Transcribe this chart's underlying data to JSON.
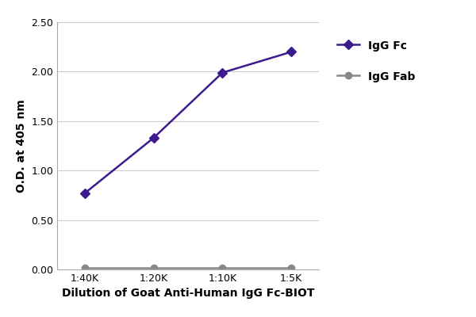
{
  "x_labels": [
    "1:40K",
    "1:20K",
    "1:10K",
    "1:5K"
  ],
  "x_positions": [
    0,
    1,
    2,
    3
  ],
  "igg_fc_values": [
    0.77,
    1.33,
    1.99,
    2.2
  ],
  "igg_fab_values": [
    0.02,
    0.02,
    0.02,
    0.02
  ],
  "igg_fc_color": "#3d1a8e",
  "igg_fab_color": "#888888",
  "igg_fc_label": "IgG Fc",
  "igg_fab_label": "IgG Fab",
  "xlabel": "Dilution of Goat Anti-Human IgG Fc-BIOT",
  "ylabel": "O.D. at 405 nm",
  "ylim": [
    0.0,
    2.5
  ],
  "yticks": [
    0.0,
    0.5,
    1.0,
    1.5,
    2.0,
    2.5
  ],
  "line_width": 1.8,
  "marker_size": 6,
  "marker_style_fc": "D",
  "marker_style_fab": "o",
  "background_color": "#ffffff",
  "grid_color": "#cccccc",
  "xlabel_fontsize": 10,
  "ylabel_fontsize": 10,
  "tick_fontsize": 9,
  "legend_fontsize": 10
}
